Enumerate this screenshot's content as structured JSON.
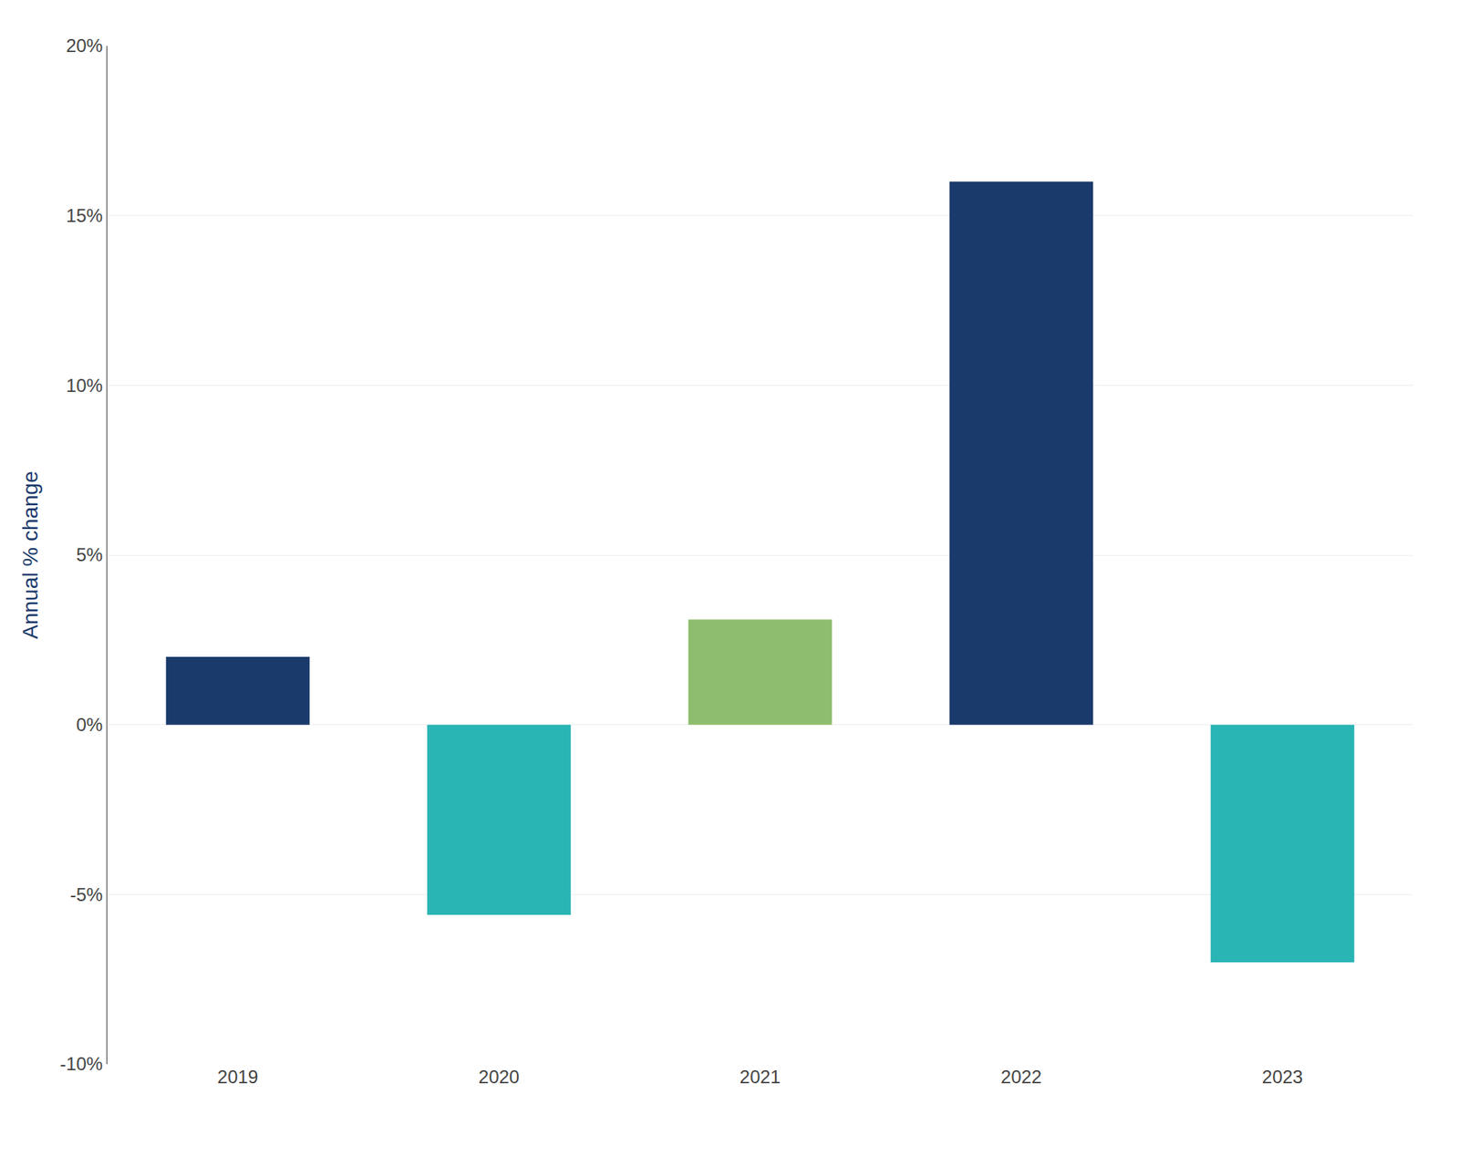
{
  "chart_data": {
    "type": "bar",
    "categories": [
      "2019",
      "2020",
      "2021",
      "2022",
      "2023"
    ],
    "values": [
      2.0,
      -5.6,
      3.1,
      16.0,
      -7.0
    ],
    "colors": [
      "#1a3a6b",
      "#2ab5b5",
      "#8fbd6e",
      "#1a3a6b",
      "#2ab5b5"
    ],
    "ylabel": "Annual % change",
    "ylim": [
      -10,
      20
    ],
    "yticks": [
      {
        "value": -10,
        "label": "-10%"
      },
      {
        "value": -5,
        "label": "-5%"
      },
      {
        "value": 0,
        "label": "0%"
      },
      {
        "value": 5,
        "label": "5%"
      },
      {
        "value": 10,
        "label": "10%"
      },
      {
        "value": 15,
        "label": "15%"
      },
      {
        "value": 20,
        "label": "20%"
      }
    ],
    "grid": true
  }
}
